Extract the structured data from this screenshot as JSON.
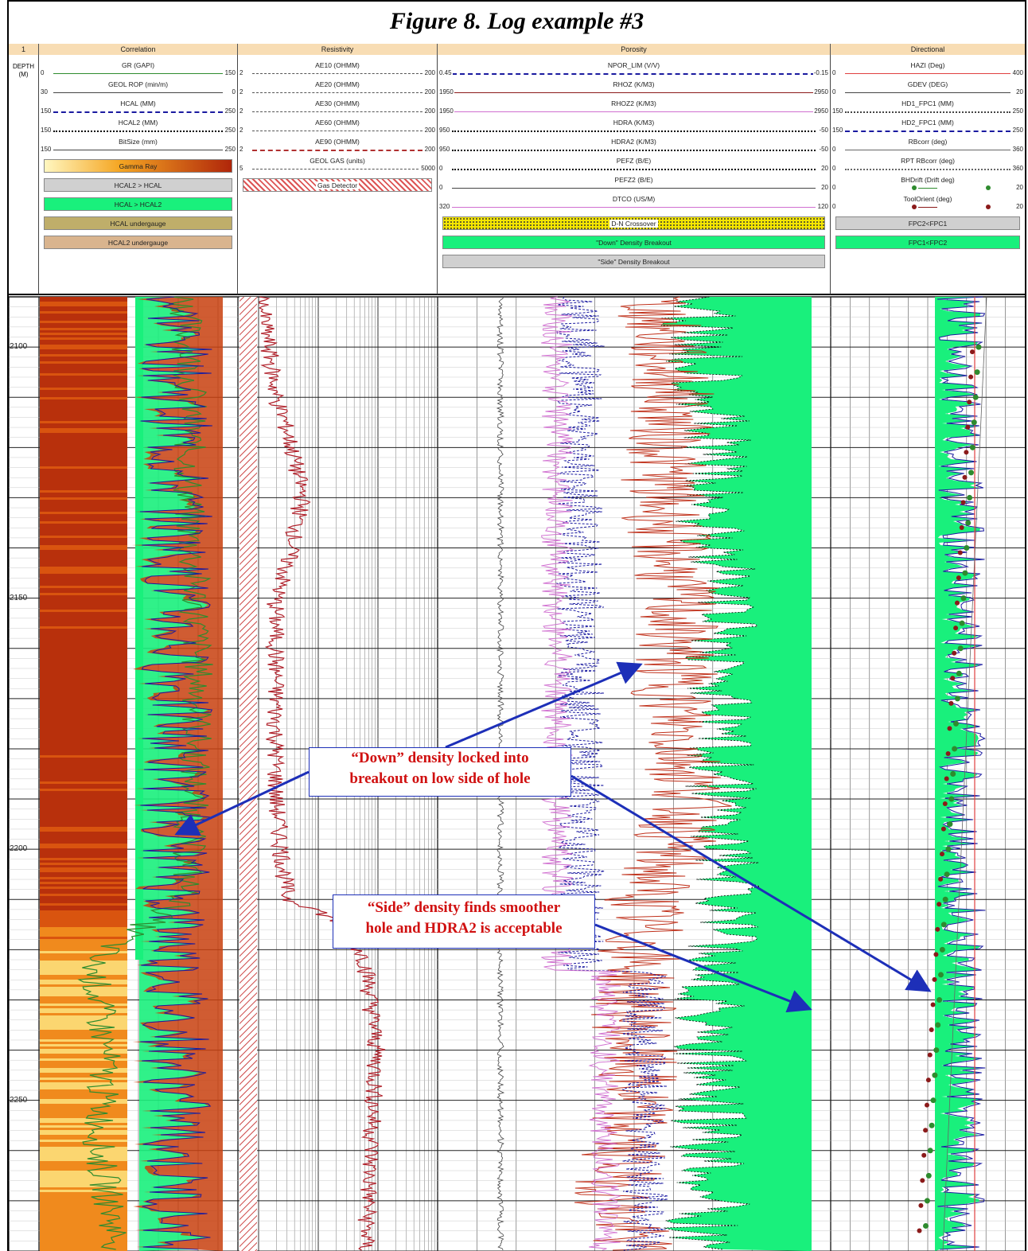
{
  "title": "Figure 8.  Log example #3",
  "depth_header": {
    "track_no": "1",
    "label": "DEPTH",
    "unit": "(M)"
  },
  "tracks": [
    {
      "name": "Correlation",
      "curves": [
        {
          "name": "GR (GAPI)",
          "left": "0",
          "right": "150",
          "color": "#2e8b2e",
          "style": "solid"
        },
        {
          "name": "GEOL ROP (min/m)",
          "left": "30",
          "right": "0",
          "color": "#444444",
          "style": "solid"
        },
        {
          "name": "HCAL (MM)",
          "left": "150",
          "right": "250",
          "color": "#1a1aa0",
          "style": "dashed"
        },
        {
          "name": "HCAL2 (MM)",
          "left": "150",
          "right": "250",
          "color": "#000000",
          "style": "dotted"
        },
        {
          "name": "BitSize (mm)",
          "left": "150",
          "right": "250",
          "color": "#444444",
          "style": "solid"
        }
      ],
      "boxes": [
        {
          "label": "Gamma Ray",
          "color": "gradient"
        },
        {
          "label": "HCAL2 > HCAL",
          "color": "#d0d0d0"
        },
        {
          "label": "HCAL > HCAL2",
          "color": "#19f07c"
        },
        {
          "label": "HCAL undergauge",
          "color": "#bfae6a"
        },
        {
          "label": "HCAL2 undergauge",
          "color": "#d9b48e"
        }
      ]
    },
    {
      "name": "Resistivity",
      "curves": [
        {
          "name": "AE10 (OHMM)",
          "left": "2",
          "right": "200",
          "color": "#555555",
          "style": "dashdot"
        },
        {
          "name": "AE20 (OHMM)",
          "left": "2",
          "right": "200",
          "color": "#555555",
          "style": "dashdot"
        },
        {
          "name": "AE30 (OHMM)",
          "left": "2",
          "right": "200",
          "color": "#555555",
          "style": "dashdot"
        },
        {
          "name": "AE60 (OHMM)",
          "left": "2",
          "right": "200",
          "color": "#555555",
          "style": "dashdot"
        },
        {
          "name": "AE90 (OHMM)",
          "left": "2",
          "right": "200",
          "color": "#b03030",
          "style": "dashed"
        },
        {
          "name": "GEOL GAS (units)",
          "left": "5",
          "right": "5000",
          "color": "#555555",
          "style": "dashdot"
        }
      ],
      "boxes": [
        {
          "label": "Gas Detector",
          "color": "hatch"
        }
      ]
    },
    {
      "name": "Porosity",
      "curves": [
        {
          "name": "NPOR_LIM (V/V)",
          "left": "0.45",
          "right": "-0.15",
          "color": "#1a1aa0",
          "style": "dashed"
        },
        {
          "name": "RHOZ (K/M3)",
          "left": "1950",
          "right": "2950",
          "color": "#8b1a1a",
          "style": "solid"
        },
        {
          "name": "RHOZ2 (K/M3)",
          "left": "1950",
          "right": "2950",
          "color": "#d070d0",
          "style": "solid"
        },
        {
          "name": "HDRA (K/M3)",
          "left": "950",
          "right": "-50",
          "color": "#000000",
          "style": "dotted"
        },
        {
          "name": "HDRA2 (K/M3)",
          "left": "950",
          "right": "-50",
          "color": "#000000",
          "style": "dotted"
        },
        {
          "name": "PEFZ (B/E)",
          "left": "0",
          "right": "20",
          "color": "#000000",
          "style": "dotted"
        },
        {
          "name": "PEFZ2 (B/E)",
          "left": "0",
          "right": "20",
          "color": "#444444",
          "style": "solid"
        },
        {
          "name": "DTCO (US/M)",
          "left": "320",
          "right": "120",
          "color": "#d070d0",
          "style": "solid"
        }
      ],
      "boxes": [
        {
          "label": "D-N Crossover",
          "color": "dots"
        },
        {
          "label": "\"Down\" Density Breakout",
          "color": "#19f07c"
        },
        {
          "label": "\"Side\" Density Breakout",
          "color": "#d0d0d0"
        }
      ]
    },
    {
      "name": "Directional",
      "curves": [
        {
          "name": "HAZI (Deg)",
          "left": "0",
          "right": "400",
          "color": "#e04040",
          "style": "solid"
        },
        {
          "name": "GDEV (DEG)",
          "left": "0",
          "right": "20",
          "color": "#444444",
          "style": "solid"
        },
        {
          "name": "HD1_FPC1 (MM)",
          "left": "150",
          "right": "250",
          "color": "#444444",
          "style": "dotted"
        },
        {
          "name": "HD2_FPC1 (MM)",
          "left": "150",
          "right": "250",
          "color": "#1a1aa0",
          "style": "dashed"
        },
        {
          "name": "RBcorr (deg)",
          "left": "0",
          "right": "360",
          "color": "#666666",
          "style": "solid"
        },
        {
          "name": "RPT RBcorr (deg)",
          "left": "0",
          "right": "360",
          "color": "#666666",
          "style": "dotted"
        },
        {
          "name": "BHDrift (Drift deg)",
          "left": "0",
          "right": "20",
          "color": "#2e8b2e",
          "style": "tadpole"
        },
        {
          "name": "ToolOrient (deg)",
          "left": "0",
          "right": "20",
          "color": "#8b1a1a",
          "style": "tadpole"
        }
      ],
      "boxes": [
        {
          "label": "FPC2<FPC1",
          "color": "#d0d0d0"
        },
        {
          "label": "FPC1<FPC2",
          "color": "#19f07c"
        }
      ]
    }
  ],
  "annotations": [
    {
      "line1": "“Down” density locked into",
      "line2": "breakout on low side of hole"
    },
    {
      "line1": "“Side” density finds smoother",
      "line2": "hole and HDRA2 is acceptable"
    }
  ],
  "colors": {
    "breakout_fill": "#19f07c",
    "gr_dark": "#c23a0a",
    "gr_light": "#f5a623",
    "arrow": "#1d2fb8",
    "annotation_text": "#d01010"
  },
  "chart_data": {
    "type": "line",
    "title": "Figure 8.  Log example #3",
    "ylabel": "DEPTH (M)",
    "ylim": [
      2090,
      2280
    ],
    "depth_ticks": [
      "2100",
      "2150",
      "2200",
      "2250"
    ],
    "series": [
      {
        "name": "GR (GAPI)",
        "track": "Correlation",
        "depth": [
          2090,
          2110,
          2130,
          2150,
          2170,
          2190,
          2210,
          2222,
          2240,
          2260,
          2280
        ],
        "values": [
          110,
          115,
          112,
          118,
          120,
          116,
          110,
          40,
          50,
          45,
          60
        ]
      },
      {
        "name": "AE90 (OHMM)",
        "track": "Resistivity",
        "depth": [
          2090,
          2110,
          2130,
          2150,
          2170,
          2190,
          2210,
          2222,
          2240,
          2260,
          2280
        ],
        "values": [
          2,
          3,
          6,
          3,
          3,
          3,
          4,
          30,
          40,
          35,
          30
        ]
      },
      {
        "name": "HDRA (K/M3)",
        "track": "Porosity",
        "depth": [
          2090,
          2110,
          2130,
          2150,
          2170,
          2190,
          2210,
          2230,
          2250,
          2270,
          2280
        ],
        "values": [
          300,
          250,
          260,
          220,
          240,
          230,
          210,
          250,
          280,
          250,
          300
        ]
      },
      {
        "name": "RHOZ (K/M3)",
        "track": "Porosity",
        "depth": [
          2090,
          2110,
          2130,
          2150,
          2170,
          2190,
          2210,
          2230,
          2250,
          2270,
          2280
        ],
        "values": [
          2500,
          2550,
          2520,
          2560,
          2550,
          2600,
          2480,
          2450,
          2450,
          2400,
          2450
        ]
      }
    ]
  }
}
